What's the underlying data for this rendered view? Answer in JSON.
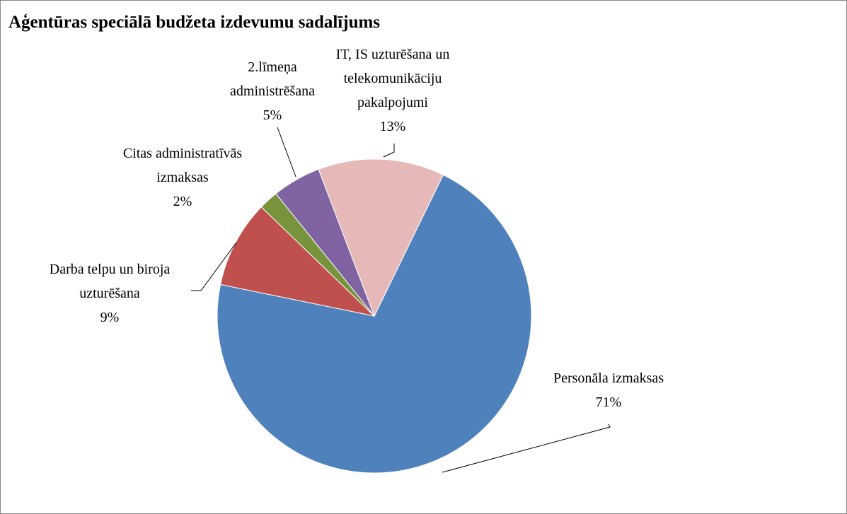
{
  "chart_data": {
    "type": "pie",
    "title": "Aģentūras speciālā budžeta izdevumu sadalījums",
    "categories": [
      "Personāla izmaksas",
      "Darba telpu un biroja uzturēšana",
      "Citas administratīvās izmaksas",
      "2.līmeņa administrēšana",
      "IT, IS uzturēšana un telekomunikāciju pakalpojumi"
    ],
    "values": [
      71,
      9,
      2,
      5,
      13
    ],
    "value_labels": [
      "71%",
      "9%",
      "2%",
      "5%",
      "13%"
    ],
    "colors": [
      "#4f81bd",
      "#c0504d",
      "#77933c",
      "#8064a2",
      "#e6b9b8"
    ]
  }
}
